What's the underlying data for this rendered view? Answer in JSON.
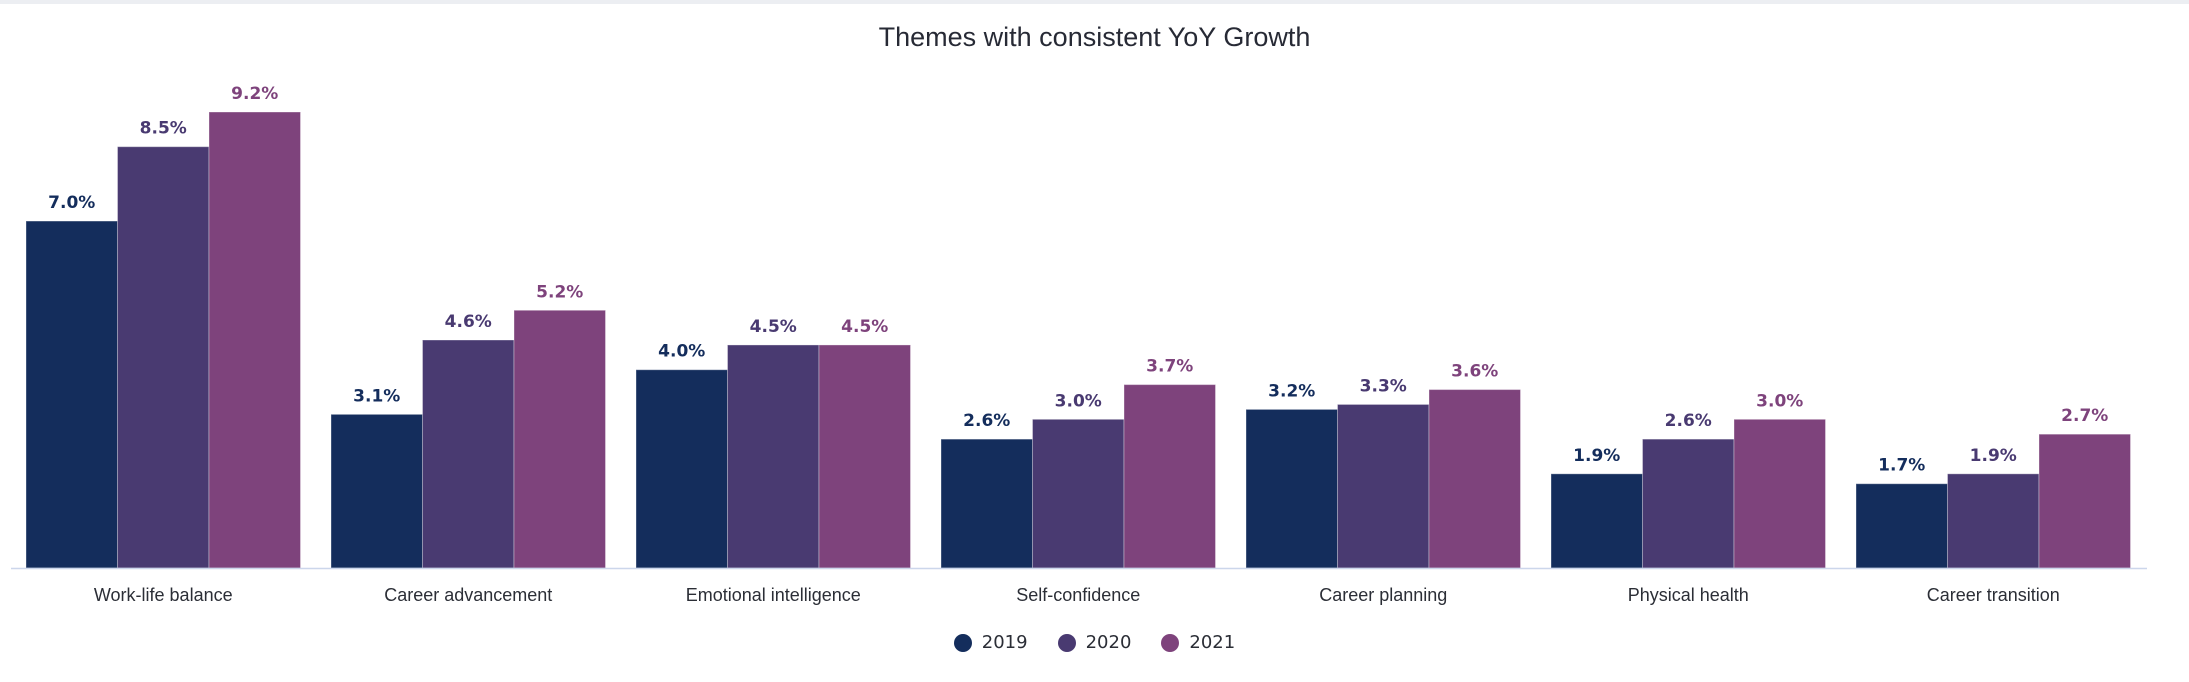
{
  "chart_data": {
    "type": "bar",
    "title": "Themes with consistent YoY Growth",
    "xlabel": "",
    "ylabel": "",
    "ylim": [
      0,
      9.2
    ],
    "grid": false,
    "legend_position": "bottom-center",
    "value_format": "{v}%",
    "categories": [
      "Work-life balance",
      "Career advancement",
      "Emotional intelligence",
      "Self-confidence",
      "Career planning",
      "Physical health",
      "Career transition"
    ],
    "series": [
      {
        "name": "2019",
        "color": "#142d5c",
        "values": [
          7.0,
          3.1,
          4.0,
          2.6,
          3.2,
          1.9,
          1.7
        ]
      },
      {
        "name": "2020",
        "color": "#493a71",
        "values": [
          8.5,
          4.6,
          4.5,
          3.0,
          3.3,
          2.6,
          1.9
        ]
      },
      {
        "name": "2021",
        "color": "#7e437c",
        "values": [
          9.2,
          5.2,
          4.5,
          3.7,
          3.6,
          3.0,
          2.7
        ]
      }
    ],
    "data_labels": [
      [
        "7.0%",
        "3.1%",
        "4.0%",
        "2.6%",
        "3.2%",
        "1.9%",
        "1.7%"
      ],
      [
        "8.5%",
        "4.6%",
        "4.5%",
        "3.0%",
        "3.3%",
        "2.6%",
        "1.9%"
      ],
      [
        "9.2%",
        "5.2%",
        "4.5%",
        "3.7%",
        "3.6%",
        "3.0%",
        "2.7%"
      ]
    ]
  }
}
